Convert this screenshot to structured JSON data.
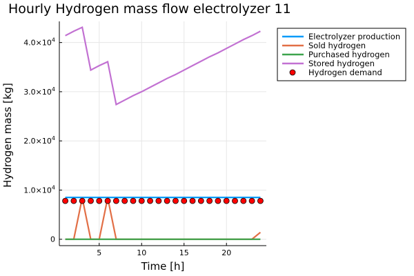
{
  "chart_data": {
    "type": "line",
    "title": "Hourly Hydrogen mass flow electrolyzer 11",
    "xlabel": "Time [h]",
    "ylabel": "Hydrogen mass [kg]",
    "xlim": [
      0.3,
      24.7
    ],
    "ylim": [
      -1300,
      44300
    ],
    "xticks": [
      5,
      10,
      15,
      20
    ],
    "xtick_labels": [
      "5",
      "10",
      "15",
      "20"
    ],
    "yticks": [
      0,
      10000,
      20000,
      30000,
      40000
    ],
    "ytick_labels": [
      {
        "mantissa": "0",
        "exp": ""
      },
      {
        "mantissa": "1.0×10",
        "exp": "4"
      },
      {
        "mantissa": "2.0×10",
        "exp": "4"
      },
      {
        "mantissa": "3.0×10",
        "exp": "4"
      },
      {
        "mantissa": "4.0×10",
        "exp": "4"
      }
    ],
    "grid": true,
    "legend_position": "outer-top-right",
    "x": [
      1,
      2,
      3,
      4,
      5,
      6,
      7,
      8,
      9,
      10,
      11,
      12,
      13,
      14,
      15,
      16,
      17,
      18,
      19,
      20,
      21,
      22,
      23,
      24
    ],
    "series": [
      {
        "name": "Electrolyzer production",
        "kind": "line",
        "color": "#009af9",
        "values": [
          8500,
          8500,
          8500,
          8500,
          8500,
          8500,
          8500,
          8500,
          8500,
          8500,
          8500,
          8500,
          8500,
          8500,
          8500,
          8500,
          8500,
          8500,
          8500,
          8500,
          8500,
          8500,
          8500,
          8500
        ]
      },
      {
        "name": "Sold hydrogen",
        "kind": "line",
        "color": "#e26f46",
        "values": [
          0,
          0,
          8400,
          0,
          0,
          8400,
          0,
          0,
          0,
          0,
          0,
          0,
          0,
          0,
          0,
          0,
          0,
          0,
          0,
          0,
          0,
          0,
          0,
          1400
        ]
      },
      {
        "name": "Purchased hydrogen",
        "kind": "line",
        "color": "#3da44d",
        "values": [
          0,
          0,
          0,
          0,
          0,
          0,
          0,
          0,
          0,
          0,
          0,
          0,
          0,
          0,
          0,
          0,
          0,
          0,
          0,
          0,
          0,
          0,
          0,
          0
        ]
      },
      {
        "name": "Stored hydrogen",
        "kind": "line",
        "color": "#c271d2",
        "values": [
          41400,
          42300,
          43100,
          34400,
          35300,
          36100,
          27400,
          28300,
          29200,
          30000,
          30900,
          31800,
          32700,
          33500,
          34400,
          35300,
          36200,
          37100,
          37900,
          38800,
          39700,
          40600,
          41400,
          42300
        ]
      },
      {
        "name": "Hydrogen demand",
        "kind": "scatter",
        "color": "#ff0000",
        "values": [
          7800,
          7800,
          7800,
          7800,
          7800,
          7800,
          7800,
          7800,
          7800,
          7800,
          7800,
          7800,
          7800,
          7800,
          7800,
          7800,
          7800,
          7800,
          7800,
          7800,
          7800,
          7800,
          7800,
          7800
        ]
      }
    ]
  }
}
